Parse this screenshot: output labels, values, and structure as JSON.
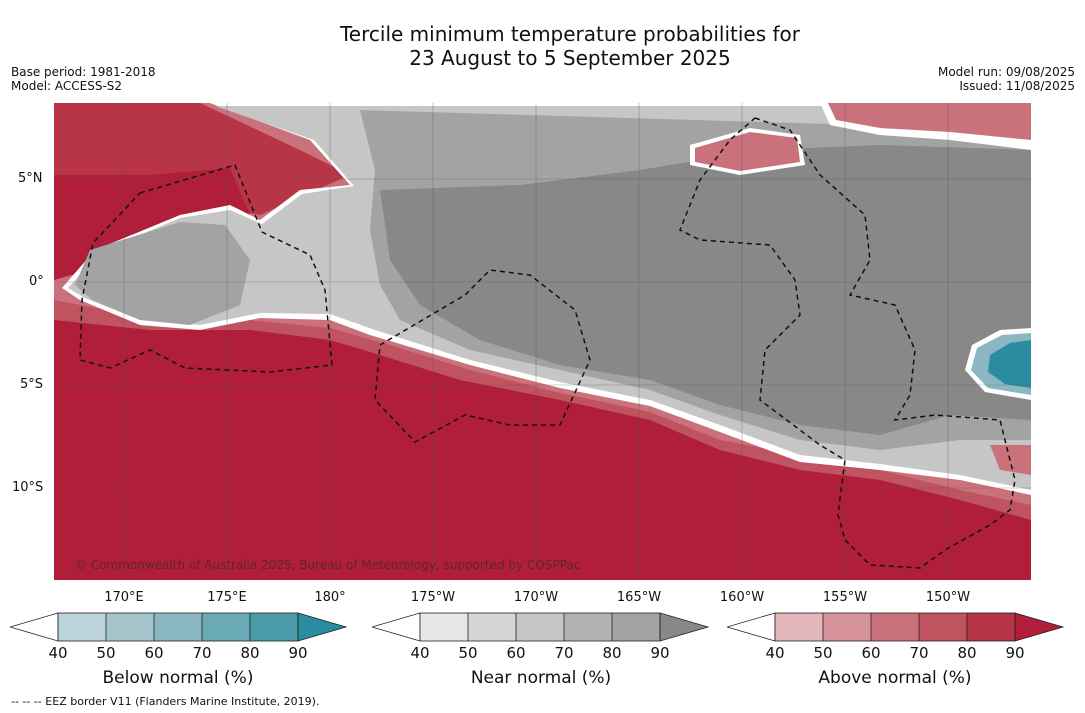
{
  "title_line1": "Tercile minimum temperature probabilities for",
  "title_line2": "23 August to 5 September 2025",
  "meta_left": {
    "base_period": "Base period: 1981-2018",
    "model": "Model: ACCESS-S2"
  },
  "meta_right": {
    "model_run": "Model run: 09/08/2025",
    "issued": "Issued: 11/08/2025"
  },
  "lat_labels": [
    "5°N",
    "0°",
    "5°S",
    "10°S"
  ],
  "lon_labels": [
    "170°E",
    "175°E",
    "180°",
    "175°W",
    "170°W",
    "165°W",
    "160°W",
    "155°W",
    "150°W"
  ],
  "copyright": "© Commonwealth of Australia 2025, Bureau of Meteorology, supported by COSPPac",
  "legend": {
    "below": {
      "title": "Below normal (%)",
      "ticks": [
        "40",
        "50",
        "60",
        "70",
        "80",
        "90"
      ],
      "colors": [
        "#ffffff",
        "#bcd3db",
        "#a6c6cd",
        "#8ab7c1",
        "#6aa9b6",
        "#4a9aaa",
        "#2a8ca0"
      ]
    },
    "near": {
      "title": "Near normal (%)",
      "ticks": [
        "40",
        "50",
        "60",
        "70",
        "80",
        "90"
      ],
      "colors": [
        "#ffffff",
        "#e6e6e6",
        "#d6d6d6",
        "#c6c6c6",
        "#b3b3b3",
        "#a3a3a3",
        "#888888"
      ]
    },
    "above": {
      "title": "Above normal (%)",
      "ticks": [
        "40",
        "50",
        "60",
        "70",
        "80",
        "90"
      ],
      "colors": [
        "#ffffff",
        "#e2b6bb",
        "#d6939a",
        "#ca727c",
        "#bf535f",
        "#b83447",
        "#b01e3a"
      ]
    }
  },
  "footnote": "-- -- -- EEZ border V11 (Flanders Marine Institute, 2019)."
}
